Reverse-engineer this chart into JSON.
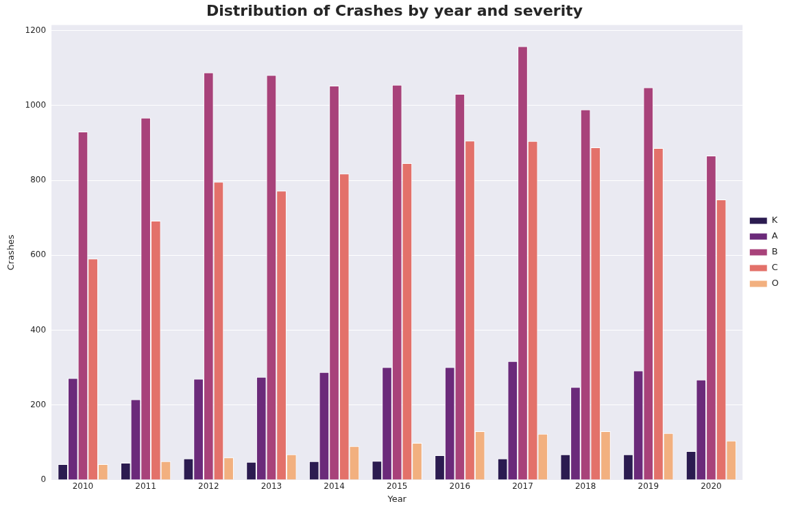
{
  "chart_data": {
    "type": "bar",
    "title": "Distribution of Crashes by year and severity",
    "xlabel": "Year",
    "ylabel": "Crashes",
    "categories": [
      "2010",
      "2011",
      "2012",
      "2013",
      "2014",
      "2015",
      "2016",
      "2017",
      "2018",
      "2019",
      "2020"
    ],
    "series": [
      {
        "name": "K",
        "color": "#2b1b50",
        "values": [
          42,
          46,
          57,
          48,
          50,
          51,
          66,
          57,
          68,
          68,
          77
        ]
      },
      {
        "name": "A",
        "color": "#6b2a7a",
        "values": [
          272,
          215,
          270,
          275,
          288,
          301,
          301,
          317,
          248,
          292,
          268
        ]
      },
      {
        "name": "B",
        "color": "#a8427a",
        "values": [
          930,
          967,
          1088,
          1081,
          1053,
          1055,
          1031,
          1158,
          989,
          1048,
          866
        ]
      },
      {
        "name": "C",
        "color": "#e3716a",
        "values": [
          591,
          692,
          796,
          772,
          818,
          846,
          906,
          905,
          888,
          886,
          749
        ]
      },
      {
        "name": "O",
        "color": "#f2b07f",
        "values": [
          42,
          50,
          60,
          68,
          90,
          99,
          130,
          123,
          130,
          125,
          105
        ]
      }
    ],
    "ylim": [
      0,
      1215
    ],
    "yticks": [
      0,
      200,
      400,
      600,
      800,
      1000,
      1200
    ],
    "grid": "y",
    "legend": "right"
  }
}
